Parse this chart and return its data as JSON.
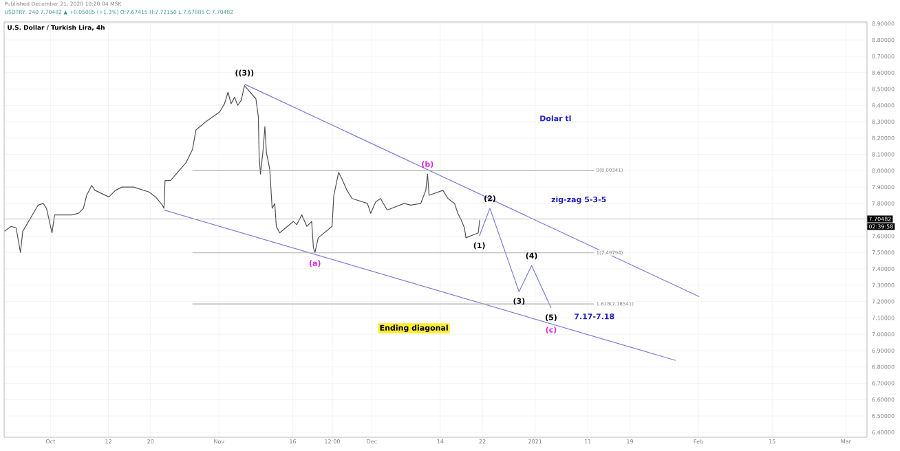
{
  "chart_data": {
    "type": "line",
    "title": "U.S. Dollar / Turkish Lira, 4h",
    "subtitle": "USDTRY, 240 7.70482 ▲ +0.05085 (+1.3%) O:7.67415 H:7.72150 L:7.67885 C:7.70482",
    "xlim": [
      "2020-09-22T05:00",
      "2021-03-05"
    ],
    "ylim": [
      6.37,
      8.91
    ],
    "xticks": [
      {
        "value": "2020-10-01",
        "label": "Oct"
      },
      {
        "value": "2020-10-12",
        "label": "12"
      },
      {
        "value": "2020-10-20",
        "label": "20"
      },
      {
        "value": "2020-11-02",
        "label": "Nov"
      },
      {
        "value": "2020-11-16",
        "label": "16"
      },
      {
        "value": "2020-11-23T12:00",
        "label": "12:00"
      },
      {
        "value": "2020-12-01",
        "label": "Dec"
      },
      {
        "value": "2020-12-14",
        "label": "14"
      },
      {
        "value": "2020-12-22",
        "label": "22"
      },
      {
        "value": "2021-01-01",
        "label": "2021"
      },
      {
        "value": "2021-01-11",
        "label": "11"
      },
      {
        "value": "2021-01-19",
        "label": "19"
      },
      {
        "value": "2021-02-01",
        "label": "Feb"
      },
      {
        "value": "2021-02-15",
        "label": "15"
      },
      {
        "value": "2021-03-01",
        "label": "Mar"
      }
    ],
    "yticks": [
      {
        "value": 6.4,
        "label": "6.40000"
      },
      {
        "value": 6.5,
        "label": "6.50000"
      },
      {
        "value": 6.6,
        "label": "6.60000"
      },
      {
        "value": 6.7,
        "label": "6.70000"
      },
      {
        "value": 6.8,
        "label": "6.80000"
      },
      {
        "value": 6.9,
        "label": "6.90000"
      },
      {
        "value": 7.0,
        "label": "7.00000"
      },
      {
        "value": 7.1,
        "label": "7.10000"
      },
      {
        "value": 7.2,
        "label": "7.20000"
      },
      {
        "value": 7.3,
        "label": "7.30000"
      },
      {
        "value": 7.4,
        "label": "7.40000"
      },
      {
        "value": 7.5,
        "label": "7.50000"
      },
      {
        "value": 7.6,
        "label": "7.60000"
      },
      {
        "value": 7.8,
        "label": "7.80000"
      },
      {
        "value": 7.9,
        "label": "7.90000"
      },
      {
        "value": 8.0,
        "label": "8.00000"
      },
      {
        "value": 8.1,
        "label": "8.10000"
      },
      {
        "value": 8.2,
        "label": "8.20000"
      },
      {
        "value": 8.3,
        "label": "8.30000"
      },
      {
        "value": 8.4,
        "label": "8.40000"
      },
      {
        "value": 8.5,
        "label": "8.50000"
      },
      {
        "value": 8.6,
        "label": "8.60000"
      },
      {
        "value": 8.7,
        "label": "8.70000"
      },
      {
        "value": 8.8,
        "label": "8.80000"
      },
      {
        "value": 8.9,
        "label": "8.90000"
      }
    ],
    "grid": true,
    "series": [
      {
        "color": "#505050",
        "x": [
          "2020-09-22T07:00",
          "2020-09-23T13:00",
          "2020-09-24T12:00",
          "2020-09-25T07:00",
          "2020-09-25T18:00",
          "2020-09-28T16:00",
          "2020-09-29T15:00",
          "2020-09-30T06:00",
          "2020-10-01T07:00",
          "2020-10-01T19:00",
          "2020-10-05T02:00",
          "2020-10-06T08:00",
          "2020-10-07T06:00",
          "2020-10-07T21:00",
          "2020-10-08T20:00",
          "2020-10-09T11:00",
          "2020-10-12T02:00",
          "2020-10-13T08:00",
          "2020-10-14T14:00",
          "2020-10-15T20:00",
          "2020-10-16T19:00",
          "2020-10-19T17:00",
          "2020-10-20T23:00",
          "2020-10-22T06:00",
          "2020-10-22T13:00",
          "2020-10-22T18:00",
          "2020-10-23T19:00",
          "2020-10-26T18:00",
          "2020-10-27T23:00",
          "2020-10-28T15:00",
          "2020-10-30T12:00",
          "2020-11-02T03:00",
          "2020-11-03T01:00",
          "2020-11-03T17:00",
          "2020-11-04T07:00",
          "2020-11-04T23:00",
          "2020-11-05T13:00",
          "2020-11-06T05:00",
          "2020-11-06T20:00",
          "2020-11-09T00:00",
          "2020-11-09T11:00",
          "2020-11-09T15:00",
          "2020-11-09T21:00",
          "2020-11-10T09:00",
          "2020-11-10T17:00",
          "2020-11-11T00:00",
          "2020-11-11T15:00",
          "2020-11-12T02:00",
          "2020-11-12T14:00",
          "2020-11-12T21:00",
          "2020-11-13T12:00",
          "2020-11-16T03:00",
          "2020-11-16T18:00",
          "2020-11-17T17:00",
          "2020-11-18T16:00",
          "2020-11-19T14:00",
          "2020-11-19T22:00",
          "2020-11-20T05:00",
          "2020-11-20T20:00",
          "2020-11-23T11:00",
          "2020-11-23T19:00",
          "2020-11-24T17:00",
          "2020-11-25T08:00",
          "2020-11-26T07:00",
          "2020-11-27T06:00",
          "2020-11-30T04:00",
          "2020-11-30T19:00",
          "2020-12-01T18:00",
          "2020-12-02T16:00",
          "2020-12-03T22:00",
          "2020-12-07T04:00",
          "2020-12-08T10:00",
          "2020-12-10T07:00",
          "2020-12-11T06:00",
          "2020-12-11T14:00",
          "2020-12-11T21:00",
          "2020-12-14T12:00",
          "2020-12-15T11:00",
          "2020-12-16T17:00",
          "2020-12-17T08:00",
          "2020-12-17T23:00",
          "2020-12-18T14:00",
          "2020-12-18T21:00",
          "2020-12-21T05:00",
          "2020-12-21T12:00"
        ],
        "values": [
          7.63,
          7.66,
          7.65,
          7.5,
          7.63,
          7.79,
          7.8,
          7.77,
          7.62,
          7.73,
          7.73,
          7.74,
          7.77,
          7.85,
          7.91,
          7.88,
          7.84,
          7.88,
          7.9,
          7.9,
          7.9,
          7.87,
          7.84,
          7.79,
          7.77,
          7.94,
          7.94,
          8.05,
          8.13,
          8.25,
          8.3,
          8.36,
          8.41,
          8.48,
          8.41,
          8.45,
          8.4,
          8.43,
          8.52,
          8.44,
          8.33,
          8.08,
          7.98,
          8.13,
          8.27,
          8.11,
          8.01,
          7.77,
          7.8,
          7.66,
          7.62,
          7.69,
          7.67,
          7.73,
          7.66,
          7.69,
          7.53,
          7.5,
          7.59,
          7.66,
          7.85,
          7.99,
          7.95,
          7.88,
          7.83,
          7.8,
          7.74,
          7.81,
          7.83,
          7.76,
          7.8,
          7.79,
          7.8,
          7.88,
          7.98,
          7.85,
          7.88,
          7.83,
          7.8,
          7.74,
          7.7,
          7.65,
          7.59,
          7.62,
          7.7
        ]
      },
      {
        "color": "#7b7bd9",
        "x": [
          "2020-12-21T10:00",
          "2020-12-23T10:00",
          "2020-12-28T23:00",
          "2020-12-31T08:00",
          "2021-01-04T01:00"
        ],
        "values": [
          7.6,
          7.77,
          7.26,
          7.42,
          7.16
        ]
      },
      {
        "color": "#7b7bd9",
        "x": [
          "2020-11-06T20:00",
          "2021-02-01T04:00"
        ],
        "values": [
          8.53,
          7.23
        ]
      },
      {
        "color": "#7b7bd9",
        "x": [
          "2020-10-22T13:00",
          "2021-01-27T16:00"
        ],
        "values": [
          7.76,
          6.84
        ]
      },
      {
        "name": "0(8.00341)",
        "color": "#b0b0b0",
        "x": [
          "2020-10-27T23:00",
          "2021-01-12T04:00"
        ],
        "values": [
          8.00341,
          8.00341
        ]
      },
      {
        "name": "1(7.49794)",
        "color": "#b0b0b0",
        "x": [
          "2020-10-27T23:00",
          "2021-01-12T04:00"
        ],
        "values": [
          7.49794,
          7.49794
        ]
      },
      {
        "name": "1.618(7.18541)",
        "color": "#b0b0b0",
        "x": [
          "2020-10-27T23:00",
          "2021-01-12T04:00"
        ],
        "values": [
          7.18541,
          7.18541
        ]
      }
    ],
    "ref_lines": [
      {
        "axis": "y",
        "value": 7.70482,
        "label": "7.70482",
        "color": "#b8b8b8"
      }
    ],
    "annotations": [
      "Published December 21, 2020 10:20:04 MSK",
      "02:39:58",
      "7.17-7.18",
      "zig-zag  5-3-5",
      "Dolar tl",
      "Ending diagonal",
      {
        "text": "((3))",
        "x": "2020-11-06T20:00",
        "y": 8.53
      },
      {
        "text": "(a)",
        "x": "2020-11-20T05:00",
        "y": 7.5
      },
      {
        "text": "(b)",
        "x": "2020-12-11T14:00",
        "y": 7.98
      },
      {
        "text": "(c)",
        "x": "2021-01-04T01:00",
        "y": 7.16
      },
      {
        "text": "(1)",
        "x": "2020-12-21T10:00",
        "y": 7.6
      },
      {
        "text": "(2)",
        "x": "2020-12-23T10:00",
        "y": 7.77
      },
      {
        "text": "(3)",
        "x": "2020-12-28T23:00",
        "y": 7.26
      },
      {
        "text": "(4)",
        "x": "2020-12-31T08:00",
        "y": 7.42
      },
      {
        "text": "(5)",
        "x": "2021-01-04T01:00",
        "y": 7.16
      }
    ]
  }
}
